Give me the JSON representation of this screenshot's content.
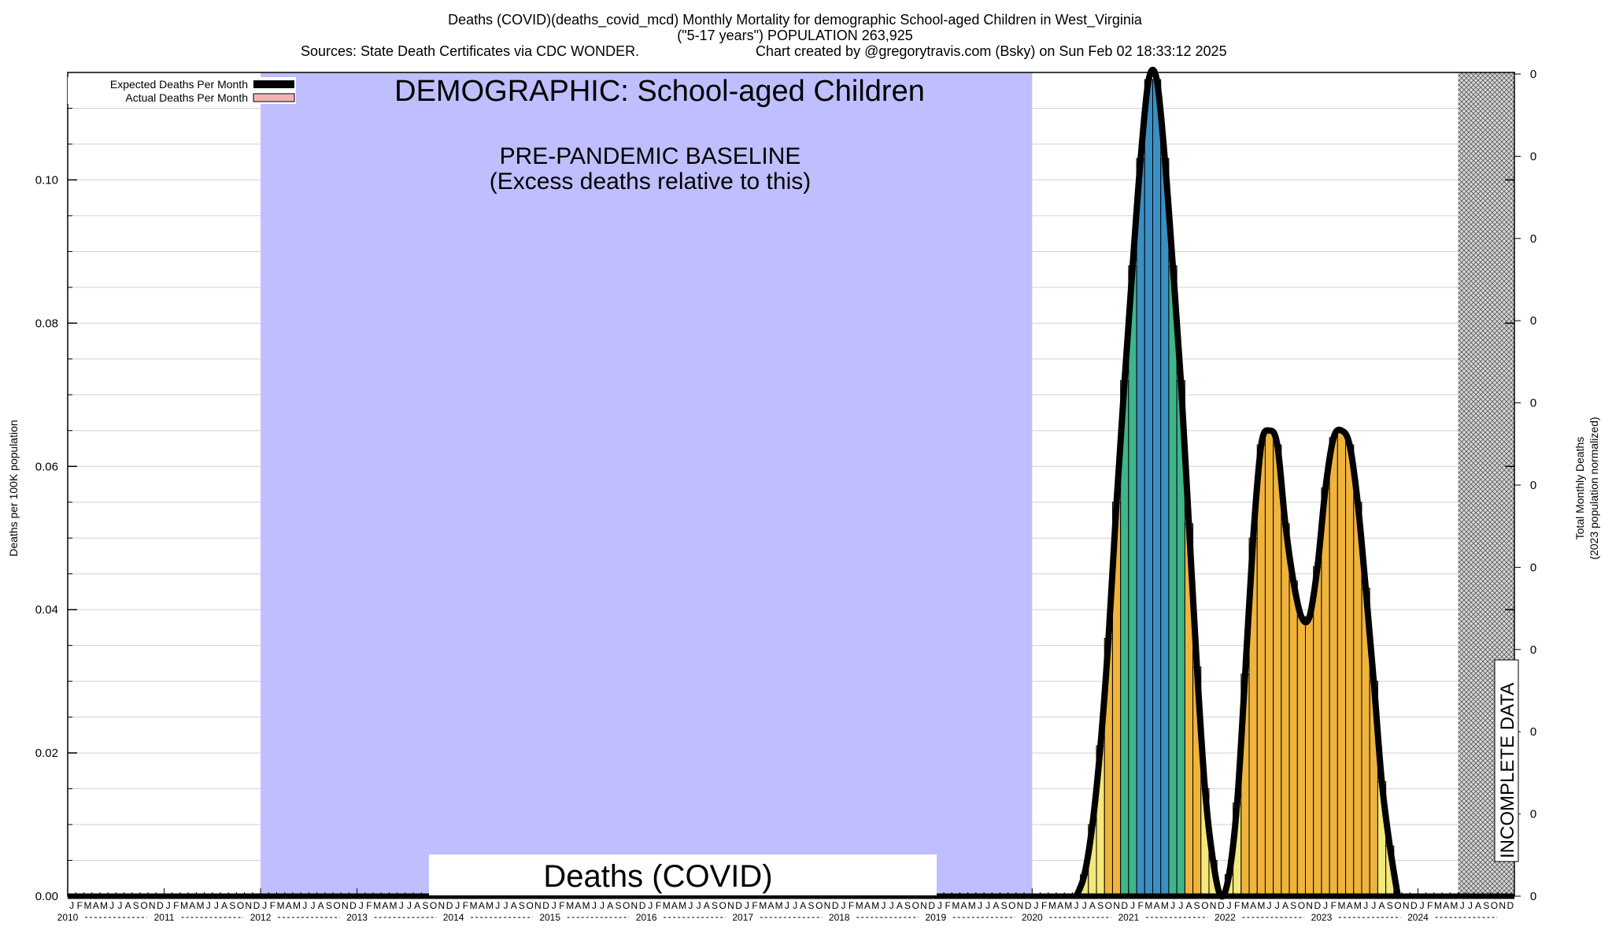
{
  "header": {
    "line1": "Deaths (COVID)(deaths_covid_mcd) Monthly Mortality for demographic School-aged Children in West_Virginia",
    "line2": "(\"5-17 years\") POPULATION 263,925",
    "line3a": "Sources: State Death Certificates via CDC WONDER.",
    "line3b": "Chart created by @gregorytravis.com (Bsky) on Sun Feb 02 18:33:12 2025"
  },
  "legend": {
    "expected": "Expected Deaths Per Month",
    "actual": "Actual Deaths Per Month"
  },
  "annotations": {
    "demographic": "DEMOGRAPHIC: School-aged Children",
    "baseline_line1": "PRE-PANDEMIC BASELINE",
    "baseline_line2": "(Excess deaths relative to this)",
    "caption": "Deaths (COVID)",
    "incomplete": "INCOMPLETE DATA"
  },
  "colors": {
    "baseline_band": "#bfbfff",
    "line": "#000000",
    "legend_actual": "#f4b3b3",
    "bar_low": "#f5e87a",
    "bar_mid": "#f0b43c",
    "bar_high": "#3a8fc4",
    "bar_green": "#3fb58a"
  },
  "chart_data": {
    "type": "bar",
    "ylabel": "Deaths per 100K population",
    "y2label_line1": "Total Monthly Deaths",
    "y2label_line2": "(2023 population normalized)",
    "ylim": [
      0,
      0.115
    ],
    "yticks": [
      0.0,
      0.02,
      0.04,
      0.06,
      0.08,
      0.1
    ],
    "ytick_labels": [
      "0.00",
      "0.02",
      "0.04",
      "0.06",
      "0.08",
      "0.10"
    ],
    "y2tick_labels": [
      "0",
      "0",
      "0",
      "0",
      "0",
      "0",
      "0",
      "0",
      "0",
      "0",
      "0"
    ],
    "month_letters": [
      "J",
      "F",
      "M",
      "A",
      "M",
      "J",
      "J",
      "A",
      "S",
      "O",
      "N",
      "D"
    ],
    "years": [
      "2010",
      "2011",
      "2012",
      "2013",
      "2014",
      "2015",
      "2016",
      "2017",
      "2018",
      "2019",
      "2020",
      "2021",
      "2022",
      "2023",
      "2024"
    ],
    "baseline_period": [
      "2012-01",
      "2019-12"
    ],
    "incomplete_period": [
      "2024-06",
      "2024-12"
    ],
    "expected_per_month": 0.0,
    "series": [
      {
        "start": "2020-06",
        "values": [
          0.0,
          0.003,
          0.01,
          0.021,
          0.036,
          0.055,
          0.072,
          0.088,
          0.103,
          0.114,
          0.114,
          0.103,
          0.088,
          0.072,
          0.052,
          0.032,
          0.015,
          0.005,
          0.0,
          0.003,
          0.013,
          0.031,
          0.05,
          0.063,
          0.065,
          0.063,
          0.052,
          0.044,
          0.039,
          0.039,
          0.046,
          0.057,
          0.064,
          0.065,
          0.063,
          0.055,
          0.043,
          0.03,
          0.016,
          0.007,
          0.0
        ]
      }
    ]
  }
}
